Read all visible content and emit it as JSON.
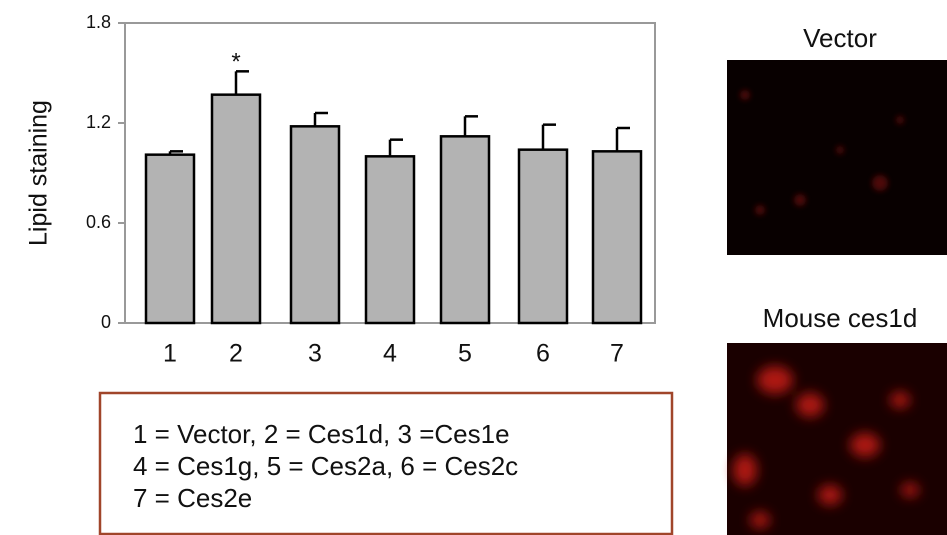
{
  "chart_data": {
    "type": "bar",
    "y_label": "Lipid staining",
    "categories": [
      "1",
      "2",
      "3",
      "4",
      "5",
      "6",
      "7"
    ],
    "values": [
      1.01,
      1.37,
      1.18,
      1.0,
      1.12,
      1.04,
      1.03
    ],
    "errors": [
      0.02,
      0.14,
      0.08,
      0.1,
      0.12,
      0.15,
      0.14
    ],
    "color": "#b3b3b3",
    "ylim": [
      0,
      1.8
    ],
    "yticks": [
      0,
      0.6,
      1.2,
      1.8
    ],
    "annotations": [
      {
        "text": "*",
        "category": "2"
      }
    ],
    "key_lines": [
      "1 = Vector, 2 = Ces1d, 3 =Ces1e",
      "4 = Ces1g, 5 = Ces2a, 6 = Ces2c",
      "7 = Ces2e"
    ]
  },
  "panels": [
    {
      "title": "Vector"
    },
    {
      "title": "Mouse ces1d"
    }
  ]
}
